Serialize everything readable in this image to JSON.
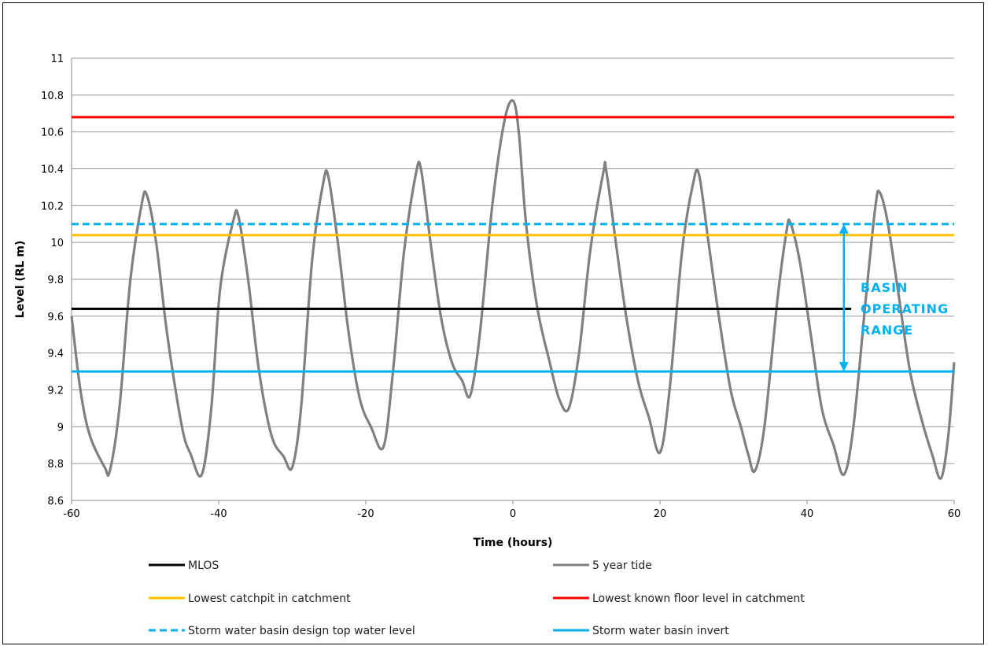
{
  "chart_data": {
    "type": "line",
    "xlabel": "Time (hours)",
    "ylabel": "Level (RL m)",
    "xlim": [
      -60,
      60
    ],
    "ylim": [
      8.6,
      11
    ],
    "x_ticks": [
      -60,
      -40,
      -20,
      0,
      20,
      40,
      60
    ],
    "y_ticks": [
      8.6,
      8.8,
      9,
      9.2,
      9.4,
      9.6,
      9.8,
      10,
      10.2,
      10.4,
      10.6,
      10.8,
      11
    ],
    "grid": "horizontal",
    "legend_position": "bottom",
    "series": [
      {
        "name": "MLOS",
        "color": "#000000",
        "style": "solid",
        "type": "hline",
        "y": 9.64,
        "x_range": [
          -60,
          46
        ]
      },
      {
        "name": "5 year tide",
        "color": "#808080",
        "style": "solid",
        "type": "curve",
        "points": [
          [
            -60,
            9.6
          ],
          [
            -58.8,
            9.2
          ],
          [
            -57.5,
            8.95
          ],
          [
            -55.5,
            8.78
          ],
          [
            -54.8,
            8.76
          ],
          [
            -53.5,
            9.1
          ],
          [
            -52,
            9.8
          ],
          [
            -50.5,
            10.2
          ],
          [
            -49.8,
            10.26
          ],
          [
            -48.5,
            10.0
          ],
          [
            -47,
            9.5
          ],
          [
            -45,
            9.0
          ],
          [
            -43.8,
            8.85
          ],
          [
            -42.3,
            8.74
          ],
          [
            -41,
            9.1
          ],
          [
            -39.8,
            9.75
          ],
          [
            -38,
            10.12
          ],
          [
            -37.3,
            10.14
          ],
          [
            -36,
            9.8
          ],
          [
            -34.5,
            9.3
          ],
          [
            -32.8,
            8.95
          ],
          [
            -31.2,
            8.84
          ],
          [
            -30,
            8.78
          ],
          [
            -28.8,
            9.1
          ],
          [
            -27.3,
            9.9
          ],
          [
            -25.8,
            10.32
          ],
          [
            -25.1,
            10.36
          ],
          [
            -23.8,
            10.0
          ],
          [
            -22.3,
            9.5
          ],
          [
            -20.8,
            9.15
          ],
          [
            -19.3,
            9.0
          ],
          [
            -17.6,
            8.89
          ],
          [
            -16.3,
            9.3
          ],
          [
            -14.8,
            9.95
          ],
          [
            -13.2,
            10.37
          ],
          [
            -12.5,
            10.4
          ],
          [
            -11.2,
            10.0
          ],
          [
            -9.8,
            9.6
          ],
          [
            -8.3,
            9.35
          ],
          [
            -6.9,
            9.25
          ],
          [
            -5.8,
            9.17
          ],
          [
            -4.5,
            9.5
          ],
          [
            -2.8,
            10.2
          ],
          [
            -1.2,
            10.65
          ],
          [
            0,
            10.77
          ],
          [
            0.8,
            10.6
          ],
          [
            1.8,
            10.1
          ],
          [
            3.3,
            9.65
          ],
          [
            5,
            9.35
          ],
          [
            6.3,
            9.15
          ],
          [
            7.6,
            9.1
          ],
          [
            9,
            9.4
          ],
          [
            10.5,
            9.95
          ],
          [
            12.3,
            10.38
          ],
          [
            12.7,
            10.39
          ],
          [
            14,
            10.0
          ],
          [
            15.4,
            9.6
          ],
          [
            17,
            9.25
          ],
          [
            18.5,
            9.05
          ],
          [
            20,
            8.86
          ],
          [
            21.3,
            9.2
          ],
          [
            23,
            9.95
          ],
          [
            24.5,
            10.32
          ],
          [
            25.3,
            10.37
          ],
          [
            26.6,
            10.0
          ],
          [
            28,
            9.6
          ],
          [
            29.6,
            9.2
          ],
          [
            31,
            9.0
          ],
          [
            32,
            8.85
          ],
          [
            32.9,
            8.76
          ],
          [
            34.2,
            9.0
          ],
          [
            36,
            9.7
          ],
          [
            37.2,
            10.06
          ],
          [
            37.7,
            10.11
          ],
          [
            39,
            9.9
          ],
          [
            40.5,
            9.5
          ],
          [
            42,
            9.1
          ],
          [
            43.6,
            8.9
          ],
          [
            45,
            8.74
          ],
          [
            46.3,
            9.0
          ],
          [
            48,
            9.7
          ],
          [
            49.3,
            10.2
          ],
          [
            49.9,
            10.27
          ],
          [
            51,
            10.1
          ],
          [
            52.5,
            9.7
          ],
          [
            54,
            9.3
          ],
          [
            55.5,
            9.05
          ],
          [
            57,
            8.85
          ],
          [
            58.2,
            8.72
          ],
          [
            59.2,
            8.95
          ],
          [
            60,
            9.35
          ]
        ]
      },
      {
        "name": "Lowest catchpit in catchment",
        "color": "#FFC000",
        "style": "solid",
        "type": "hline",
        "y": 10.04,
        "x_range": [
          -60,
          60
        ]
      },
      {
        "name": "Lowest known floor level in catchment",
        "color": "#FF0000",
        "style": "solid",
        "type": "hline",
        "y": 10.68,
        "x_range": [
          -60,
          60
        ]
      },
      {
        "name": "Storm water basin design top water level",
        "color": "#00B0F0",
        "style": "dashed",
        "type": "hline",
        "y": 10.1,
        "x_range": [
          -60,
          60
        ]
      },
      {
        "name": "Storm water basin invert",
        "color": "#00B0F0",
        "style": "solid",
        "type": "hline",
        "y": 9.3,
        "x_range": [
          -60,
          60
        ]
      }
    ],
    "annotation": {
      "lines": [
        "BASIN",
        "OPERATING",
        "RANGE"
      ],
      "color": "#00B0F0",
      "arrow_x": 45,
      "arrow_y_range": [
        9.3,
        10.1
      ]
    }
  }
}
